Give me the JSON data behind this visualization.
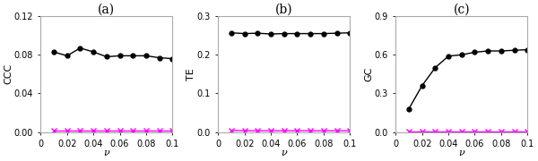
{
  "nu": [
    0.01,
    0.02,
    0.03,
    0.04,
    0.05,
    0.06,
    0.07,
    0.08,
    0.09,
    0.1
  ],
  "ccc_black": [
    0.083,
    0.079,
    0.087,
    0.083,
    0.078,
    0.079,
    0.079,
    0.079,
    0.077,
    0.076
  ],
  "ccc_magenta": [
    0.001,
    0.001,
    0.001,
    0.001,
    0.001,
    0.001,
    0.001,
    0.001,
    0.001,
    0.001
  ],
  "te_black": [
    0.257,
    0.255,
    0.256,
    0.254,
    0.255,
    0.255,
    0.255,
    0.255,
    0.256,
    0.257
  ],
  "te_magenta": [
    0.004,
    0.003,
    0.003,
    0.003,
    0.003,
    0.003,
    0.003,
    0.003,
    0.003,
    0.003
  ],
  "gc_black": [
    0.18,
    0.36,
    0.5,
    0.59,
    0.6,
    0.62,
    0.63,
    0.63,
    0.635,
    0.64
  ],
  "gc_magenta": [
    0.003,
    0.003,
    0.003,
    0.003,
    0.003,
    0.003,
    0.003,
    0.003,
    0.003,
    0.003
  ],
  "titles": [
    "(a)",
    "(b)",
    "(c)"
  ],
  "ylabels": [
    "CCC",
    "TE",
    "GC"
  ],
  "xlabel": "ν",
  "ccc_ylim": [
    0,
    0.12
  ],
  "te_ylim": [
    0,
    0.3
  ],
  "gc_ylim": [
    0,
    0.9
  ],
  "ccc_yticks": [
    0,
    0.04,
    0.08,
    0.12
  ],
  "te_yticks": [
    0,
    0.1,
    0.2,
    0.3
  ],
  "gc_yticks": [
    0,
    0.3,
    0.6,
    0.9
  ],
  "xticks": [
    0,
    0.02,
    0.04,
    0.06,
    0.08,
    0.1
  ],
  "xticklabels": [
    "0",
    "0.02",
    "0.04",
    "0.06",
    "0.08",
    "0.1"
  ],
  "black_color": "#000000",
  "magenta_color": "#FF00FF",
  "bg_color": "#ffffff",
  "title_fontsize": 10,
  "label_fontsize": 8,
  "tick_fontsize": 7
}
